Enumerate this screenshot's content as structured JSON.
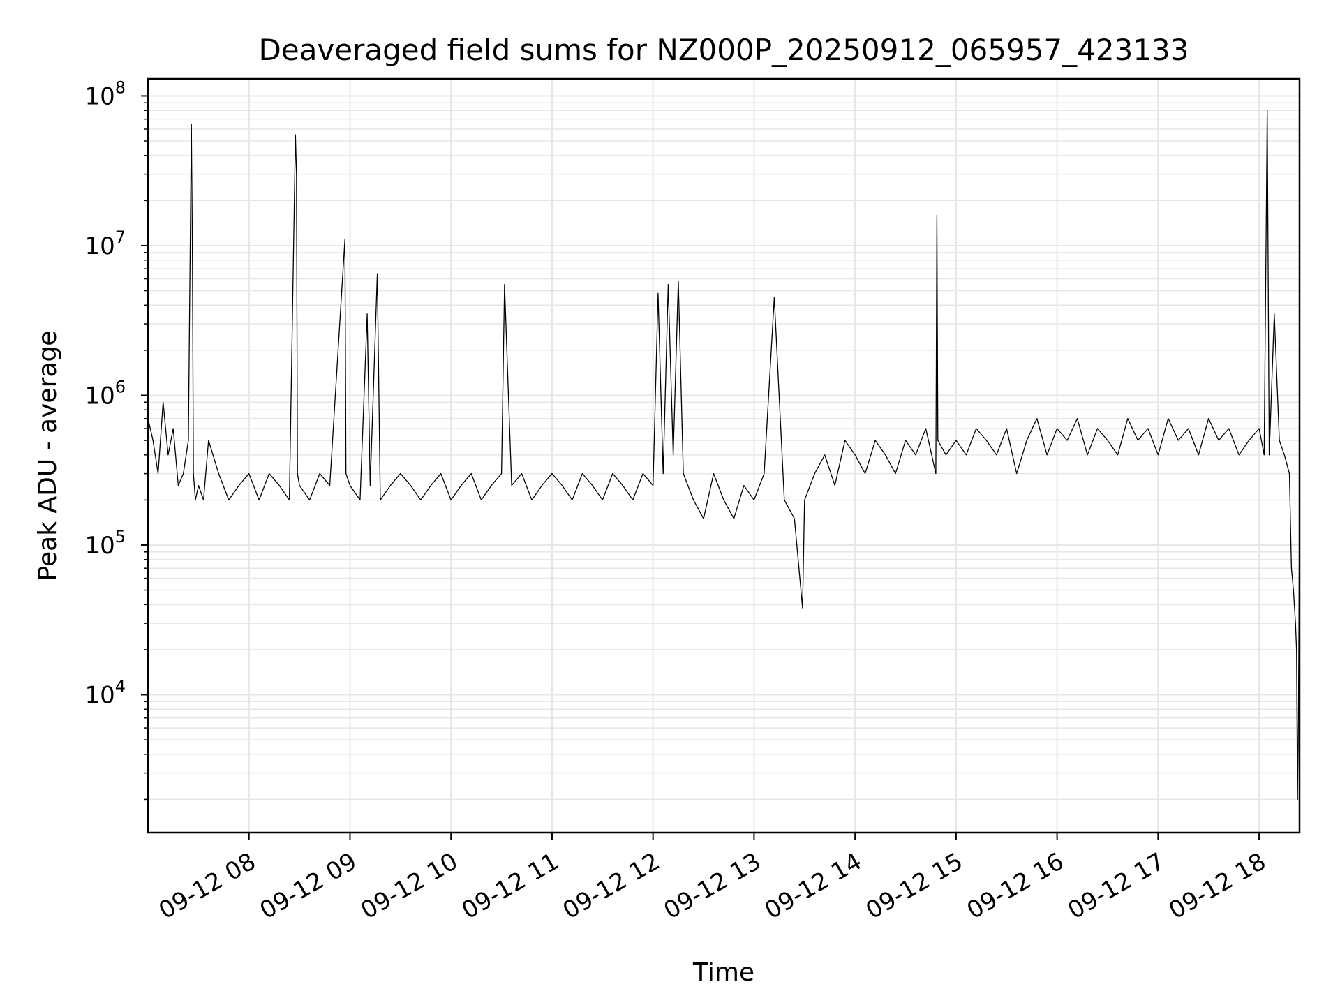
{
  "chart_data": {
    "type": "line",
    "title": "Deaveraged field sums for NZ000P_20250912_065957_423133",
    "xlabel": "Time",
    "ylabel": "Peak ADU - average",
    "yscale": "log",
    "xlim_hours": [
      7.0,
      18.4
    ],
    "ylim": [
      1200,
      130000000
    ],
    "grid": true,
    "x_ticks": [
      {
        "hour": 8,
        "label": "09-12 08"
      },
      {
        "hour": 9,
        "label": "09-12 09"
      },
      {
        "hour": 10,
        "label": "09-12 10"
      },
      {
        "hour": 11,
        "label": "09-12 11"
      },
      {
        "hour": 12,
        "label": "09-12 12"
      },
      {
        "hour": 13,
        "label": "09-12 13"
      },
      {
        "hour": 14,
        "label": "09-12 14"
      },
      {
        "hour": 15,
        "label": "09-12 15"
      },
      {
        "hour": 16,
        "label": "09-12 16"
      },
      {
        "hour": 17,
        "label": "09-12 17"
      },
      {
        "hour": 18,
        "label": "09-12 18"
      }
    ],
    "y_ticks": [
      {
        "value": 10000,
        "base": "10",
        "exp": "4"
      },
      {
        "value": 100000,
        "base": "10",
        "exp": "5"
      },
      {
        "value": 1000000,
        "base": "10",
        "exp": "6"
      },
      {
        "value": 10000000,
        "base": "10",
        "exp": "7"
      },
      {
        "value": 100000000,
        "base": "10",
        "exp": "8"
      }
    ],
    "series": [
      {
        "name": "Peak ADU - average",
        "color": "#000000",
        "x": [
          7.0,
          7.05,
          7.1,
          7.15,
          7.2,
          7.25,
          7.3,
          7.35,
          7.4,
          7.43,
          7.44,
          7.45,
          7.47,
          7.5,
          7.55,
          7.6,
          7.7,
          7.8,
          7.9,
          8.0,
          8.1,
          8.2,
          8.3,
          8.4,
          8.46,
          8.47,
          8.48,
          8.5,
          8.6,
          8.7,
          8.8,
          8.95,
          8.96,
          9.0,
          9.1,
          9.17,
          9.2,
          9.27,
          9.3,
          9.4,
          9.5,
          9.6,
          9.7,
          9.8,
          9.9,
          10.0,
          10.1,
          10.2,
          10.3,
          10.4,
          10.5,
          10.53,
          10.6,
          10.7,
          10.8,
          10.9,
          11.0,
          11.1,
          11.2,
          11.3,
          11.4,
          11.5,
          11.6,
          11.7,
          11.8,
          11.9,
          12.0,
          12.05,
          12.1,
          12.15,
          12.2,
          12.25,
          12.3,
          12.4,
          12.5,
          12.6,
          12.7,
          12.8,
          12.9,
          13.0,
          13.1,
          13.2,
          13.3,
          13.4,
          13.48,
          13.5,
          13.6,
          13.7,
          13.8,
          13.9,
          14.0,
          14.1,
          14.2,
          14.3,
          14.4,
          14.5,
          14.6,
          14.7,
          14.8,
          14.81,
          14.82,
          14.9,
          15.0,
          15.1,
          15.2,
          15.3,
          15.4,
          15.5,
          15.6,
          15.7,
          15.8,
          15.9,
          16.0,
          16.1,
          16.2,
          16.3,
          16.4,
          16.5,
          16.6,
          16.7,
          16.8,
          16.9,
          17.0,
          17.1,
          17.2,
          17.3,
          17.4,
          17.5,
          17.6,
          17.7,
          17.8,
          17.9,
          18.0,
          18.05,
          18.08,
          18.1,
          18.15,
          18.2,
          18.25,
          18.3,
          18.32,
          18.34,
          18.36,
          18.37,
          18.38,
          18.39,
          18.4
        ],
        "y": [
          700000,
          500000,
          300000,
          900000,
          400000,
          600000,
          250000,
          300000,
          500000,
          65000000,
          9000000,
          300000,
          200000,
          250000,
          200000,
          500000,
          300000,
          200000,
          250000,
          300000,
          200000,
          300000,
          250000,
          200000,
          55000000,
          30000000,
          300000,
          250000,
          200000,
          300000,
          250000,
          11000000,
          300000,
          250000,
          200000,
          3500000,
          250000,
          6500000,
          200000,
          250000,
          300000,
          250000,
          200000,
          250000,
          300000,
          200000,
          250000,
          300000,
          200000,
          250000,
          300000,
          5500000,
          250000,
          300000,
          200000,
          250000,
          300000,
          250000,
          200000,
          300000,
          250000,
          200000,
          300000,
          250000,
          200000,
          300000,
          250000,
          4800000,
          300000,
          5500000,
          400000,
          5800000,
          300000,
          200000,
          150000,
          300000,
          200000,
          150000,
          250000,
          200000,
          300000,
          4500000,
          200000,
          150000,
          38000,
          200000,
          300000,
          400000,
          250000,
          500000,
          400000,
          300000,
          500000,
          400000,
          300000,
          500000,
          400000,
          600000,
          300000,
          16000000,
          500000,
          400000,
          500000,
          400000,
          600000,
          500000,
          400000,
          600000,
          300000,
          500000,
          700000,
          400000,
          600000,
          500000,
          700000,
          400000,
          600000,
          500000,
          400000,
          700000,
          500000,
          600000,
          400000,
          700000,
          500000,
          600000,
          400000,
          700000,
          500000,
          600000,
          400000,
          500000,
          600000,
          400000,
          80000000,
          400000,
          3500000,
          500000,
          400000,
          300000,
          70000,
          50000,
          30000,
          20000,
          2000,
          10000,
          160000
        ]
      }
    ]
  }
}
